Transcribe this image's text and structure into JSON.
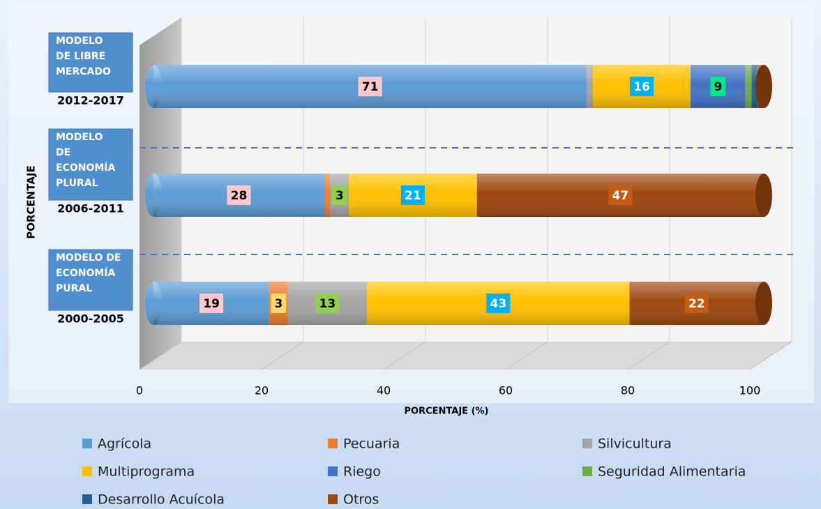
{
  "chart_data": {
    "type": "stacked-bar-horizontal",
    "categories": [
      "2012-2017",
      "2006-2011",
      "2000-2005"
    ],
    "annotations": [
      {
        "lines": [
          "MODELO",
          "DE LIBRE",
          "MERCADO"
        ]
      },
      {
        "lines": [
          "MODELO",
          "DE",
          "ECONOMÍA",
          "PLURAL"
        ]
      },
      {
        "lines": [
          "MODELO DE",
          "ECONOMÍA",
          "PURAL"
        ]
      }
    ],
    "series": [
      {
        "name": "Agrícola",
        "color": "#5b9bd5",
        "label_bg": "#ffc7ce",
        "label_text": "#000000",
        "values": [
          71,
          28,
          19
        ]
      },
      {
        "name": "Pecuaria",
        "color": "#ed7d31",
        "label_bg": "#ffd966",
        "label_text": "#000000",
        "values": [
          0,
          1,
          3
        ]
      },
      {
        "name": "Silvicultura",
        "color": "#a5a5a5",
        "label_bg": "#92d050",
        "label_text": "#000000",
        "values": [
          1,
          3,
          13
        ]
      },
      {
        "name": "Multiprograma",
        "color": "#ffc000",
        "label_bg": "#00b0f0",
        "label_text": "#ffffff",
        "values": [
          16,
          21,
          43
        ]
      },
      {
        "name": "Riego",
        "color": "#4472c4",
        "label_bg": "#00e68a",
        "label_text": "#000000",
        "values": [
          9,
          0,
          0
        ]
      },
      {
        "name": "Seguridad Alimentaria",
        "color": "#70ad47",
        "label_bg": "#70ad47",
        "label_text": "#000000",
        "values": [
          1,
          0,
          0
        ]
      },
      {
        "name": "Desarrollo Acuícola",
        "color": "#255e91",
        "label_bg": "#255e91",
        "label_text": "#ffffff",
        "values": [
          1,
          0,
          0
        ]
      },
      {
        "name": "Otros",
        "color": "#9e480e",
        "label_bg": "#c55a11",
        "label_text": "#ffffff",
        "values": [
          1,
          47,
          22
        ]
      }
    ],
    "xlabel": "PORCENTAJE (%)",
    "ylabel": "PORCENTAJE",
    "xlim": [
      0,
      100
    ],
    "xticks": [
      0,
      20,
      40,
      60,
      80,
      100
    ],
    "grid": true,
    "legend": "bottom"
  }
}
